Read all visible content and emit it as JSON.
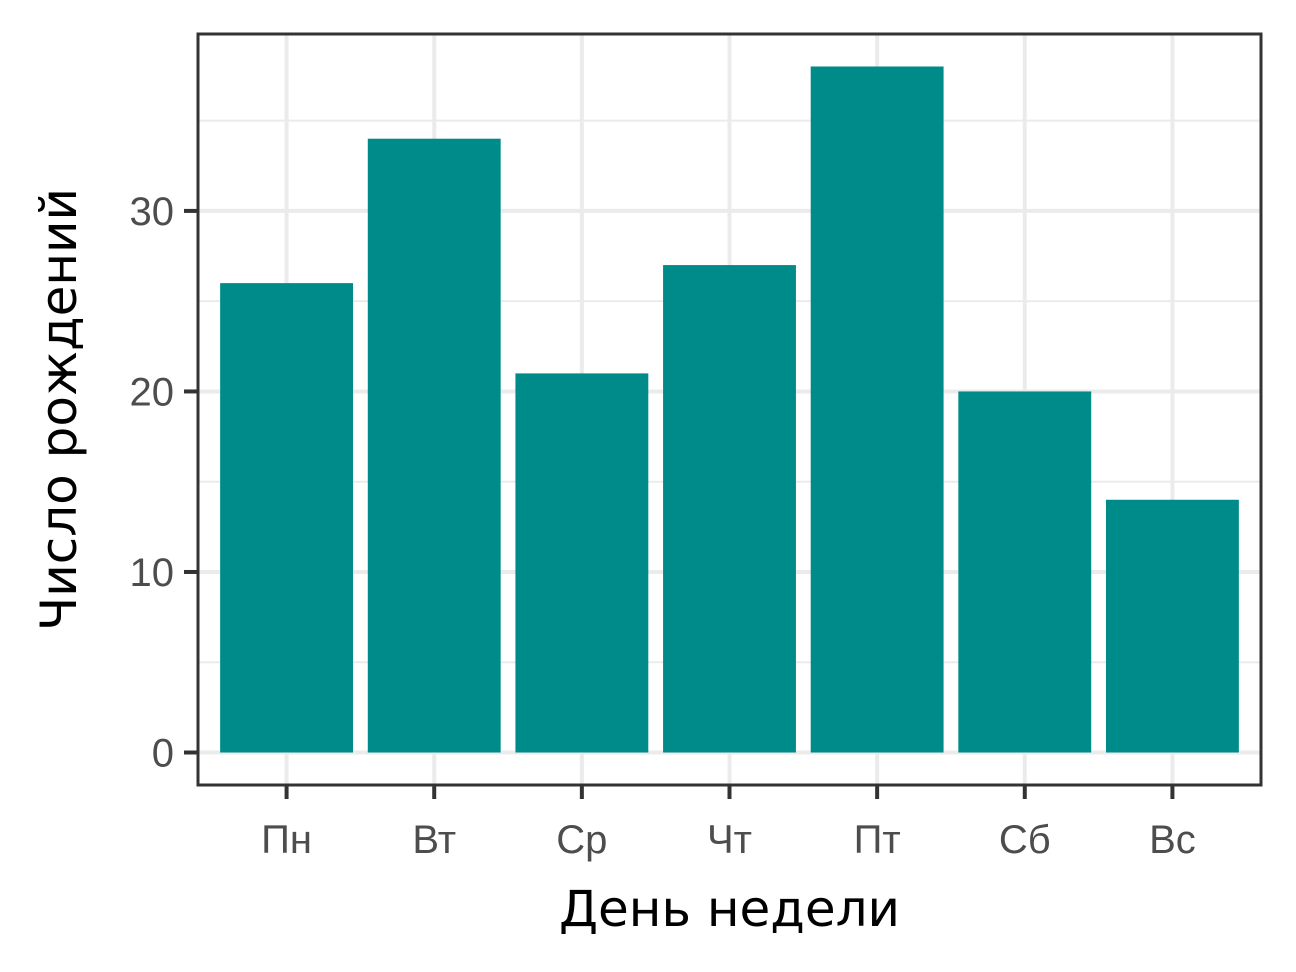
{
  "chart_data": {
    "type": "bar",
    "title": "",
    "xlabel": "День недели",
    "ylabel": "Число рождений",
    "categories": [
      "Пн",
      "Вт",
      "Ср",
      "Чт",
      "Пт",
      "Сб",
      "Вс"
    ],
    "values": [
      26,
      34,
      21,
      27,
      38,
      20,
      14
    ],
    "ylim": [
      -1.8,
      39.8
    ],
    "yticks": [
      0,
      10,
      20,
      30
    ],
    "ytick_labels": [
      "0",
      "10",
      "20",
      "30"
    ],
    "grid": true,
    "legend": "none",
    "colors": {
      "bar": "#008b8b",
      "panel_border": "#333333",
      "grid": "#ebebeb",
      "tick_text": "#4d4d4d",
      "axis_title": "#000000"
    }
  }
}
